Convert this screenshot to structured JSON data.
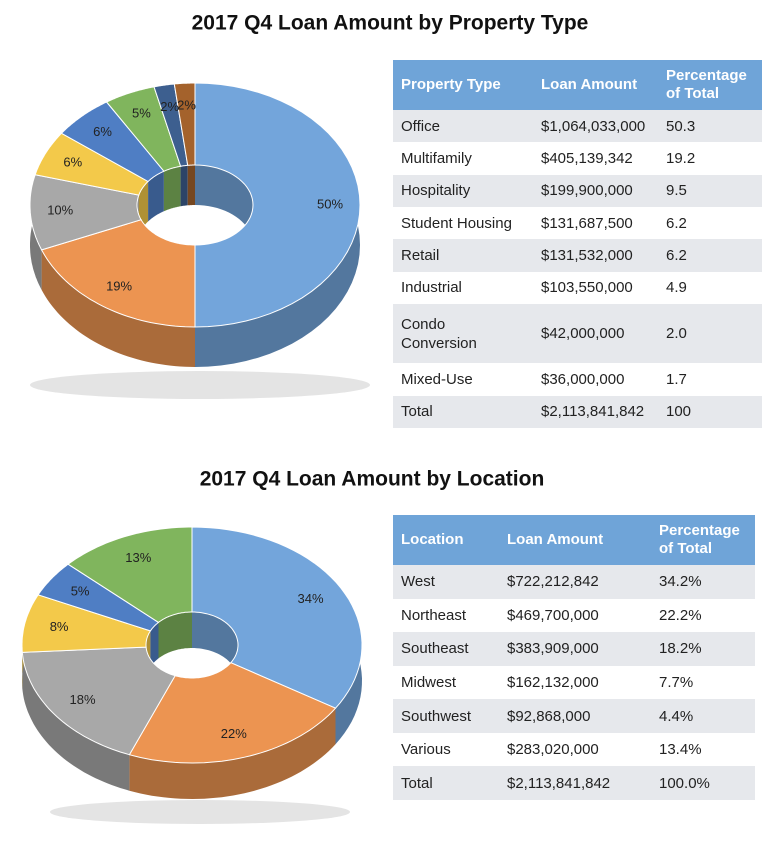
{
  "chart_data": [
    {
      "type": "pie",
      "title": "2017 Q4 Loan Amount by Property Type",
      "values": [
        50,
        19,
        10,
        6,
        6,
        5,
        2,
        2
      ],
      "value_labels": [
        "50%",
        "19%",
        "10%",
        "6%",
        "6%",
        "5%",
        "2%",
        "2%"
      ],
      "colors": [
        "#73a5db",
        "#ec9451",
        "#a8a8a8",
        "#f3c94a",
        "#4f7ec4",
        "#80b55d",
        "#3d5f8f",
        "#a4622c"
      ]
    },
    {
      "type": "pie",
      "title": "2017 Q4 Loan Amount by Location",
      "values": [
        34,
        22,
        18,
        8,
        5,
        13
      ],
      "value_labels": [
        "34%",
        "22%",
        "18%",
        "8%",
        "5%",
        "13%"
      ],
      "colors": [
        "#73a5db",
        "#ec9451",
        "#a8a8a8",
        "#f3c94a",
        "#4f7ec4",
        "#80b55d"
      ]
    }
  ],
  "tables": [
    {
      "header": [
        "Property Type",
        "Loan Amount",
        "Percentage of Total"
      ],
      "rows": [
        [
          "Office",
          "$1,064,033,000",
          "50.3"
        ],
        [
          "Multifamily",
          "$405,139,342",
          "19.2"
        ],
        [
          "Hospitality",
          "$199,900,000",
          "9.5"
        ],
        [
          "Student Housing",
          "$131,687,500",
          "6.2"
        ],
        [
          "Retail",
          "$131,532,000",
          "6.2"
        ],
        [
          "Industrial",
          "$103,550,000",
          "4.9"
        ],
        [
          "Condo Conversion",
          "$42,000,000",
          "2.0"
        ],
        [
          "Mixed-Use",
          "$36,000,000",
          "1.7"
        ],
        [
          "Total",
          "$2,113,841,842",
          "100"
        ]
      ]
    },
    {
      "header": [
        "Location",
        "Loan Amount",
        "Percentage of Total"
      ],
      "rows": [
        [
          "West",
          "$722,212,842",
          "34.2%"
        ],
        [
          "Northeast",
          "$469,700,000",
          "22.2%"
        ],
        [
          "Southeast",
          "$383,909,000",
          "18.2%"
        ],
        [
          "Midwest",
          "$162,132,000",
          "7.7%"
        ],
        [
          "Southwest",
          "$92,868,000",
          "4.4%"
        ],
        [
          "Various",
          "$283,020,000",
          "13.4%"
        ],
        [
          "Total",
          "$2,113,841,842",
          "100.0%"
        ]
      ]
    }
  ]
}
